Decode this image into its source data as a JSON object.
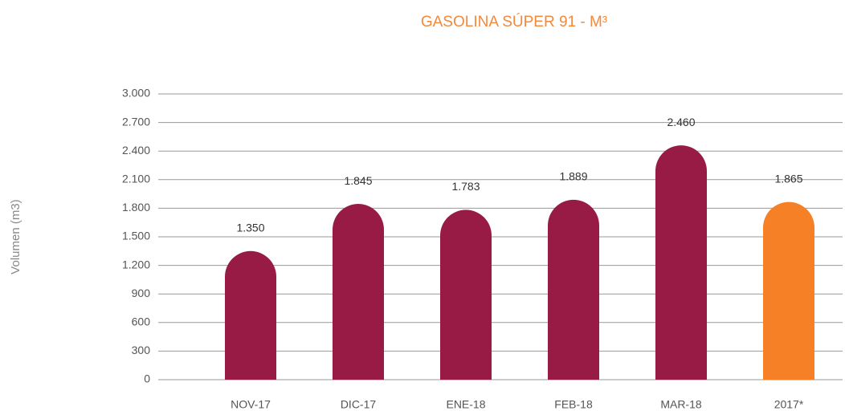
{
  "chart_data": {
    "type": "bar",
    "title": "GASOLINA SÚPER 91 - M³",
    "y_label": "Volumen (m3)",
    "categories": [
      "NOV-17",
      "DIC-17",
      "ENE-18",
      "FEB-18",
      "MAR-18",
      "2017*"
    ],
    "values": [
      1350,
      1845,
      1783,
      1889,
      2460,
      1865
    ],
    "value_labels": [
      "1.350",
      "1.845",
      "1.783",
      "1.889",
      "2.460",
      "1.865"
    ],
    "colors": [
      "#981b45",
      "#981b45",
      "#981b45",
      "#981b45",
      "#981b45",
      "#f58025"
    ],
    "ylim": [
      0,
      3000
    ],
    "yticks": [
      0,
      300,
      600,
      900,
      {
        "value": 1200,
        "label": "1.200"
      },
      {
        "value": 1500,
        "label": "1.500"
      },
      {
        "value": 1800,
        "label": "1.800"
      },
      {
        "value": 2100,
        "label": "2.100"
      },
      {
        "value": 2400,
        "label": "2.400"
      },
      {
        "value": 2700,
        "label": "2.700"
      },
      {
        "value": 3000,
        "label": "3.000"
      }
    ],
    "grid": true
  }
}
